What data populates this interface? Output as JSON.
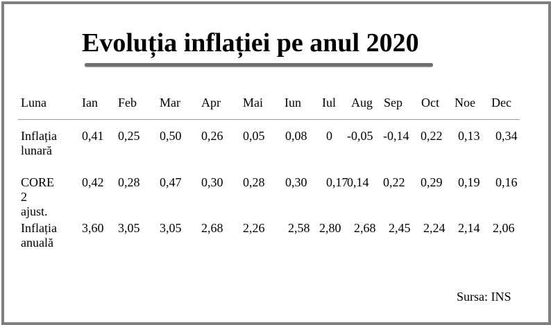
{
  "title": "Evoluția inflației pe anul 2020",
  "table": {
    "header_label": "Luna",
    "months": [
      "Ian",
      "Feb",
      "Mar",
      "Apr",
      "Mai",
      "Iun",
      "Iul",
      "Aug",
      "Sep",
      "Oct",
      "Noe",
      "Dec"
    ],
    "rows": [
      {
        "label_line1": "Inflația",
        "label_line2": "lunară",
        "values": [
          "0,41",
          "0,25",
          "0,50",
          "0,26",
          "0,05",
          "0,08",
          "0",
          "-0,05",
          "-0,14",
          "0,22",
          "0,13",
          "0,34"
        ]
      },
      {
        "label_line1": "CORE",
        "label_line2": "2 ajust.",
        "values": [
          "0,42",
          "0,28",
          "0,47",
          "0,30",
          "0,28",
          "0,30",
          "0,17",
          "0,14",
          "0,22",
          "0,29",
          "0,19",
          "0,16"
        ]
      },
      {
        "label_line1": "Inflația",
        "label_line2": "anuală",
        "values": [
          "3,60",
          "3,05",
          "3,05",
          "2,68",
          "2,26",
          "2,58",
          "2,80",
          "2,68",
          "2,45",
          "2,24",
          "2,14",
          "2,06"
        ]
      }
    ]
  },
  "source": "Sursa: INS"
}
